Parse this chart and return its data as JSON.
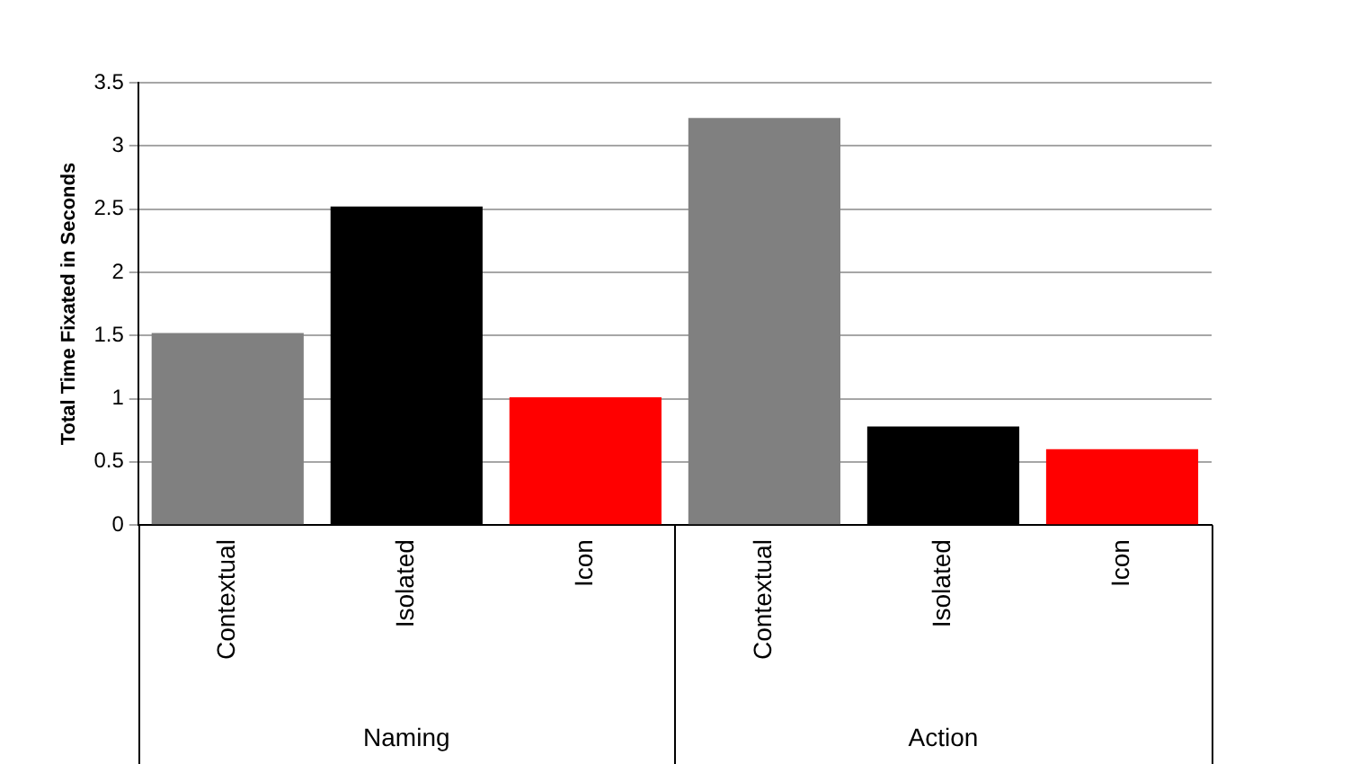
{
  "chart_data": {
    "type": "bar",
    "ylabel": "Total Time Fixated in Seconds",
    "categories": [
      "Contextual",
      "Isolated",
      "Icon",
      "Contextual",
      "Isolated",
      "Icon"
    ],
    "values": [
      1.52,
      2.52,
      1.01,
      3.22,
      0.78,
      0.6
    ],
    "colors": [
      "#808080",
      "#000000",
      "#ff0000",
      "#808080",
      "#000000",
      "#ff0000"
    ],
    "ylim": [
      0,
      3.5
    ],
    "yticks": [
      0,
      0.5,
      1,
      1.5,
      2,
      2.5,
      3,
      3.5
    ],
    "grid": "y",
    "legend": false,
    "annotations": [
      "Naming",
      "Action"
    ]
  }
}
